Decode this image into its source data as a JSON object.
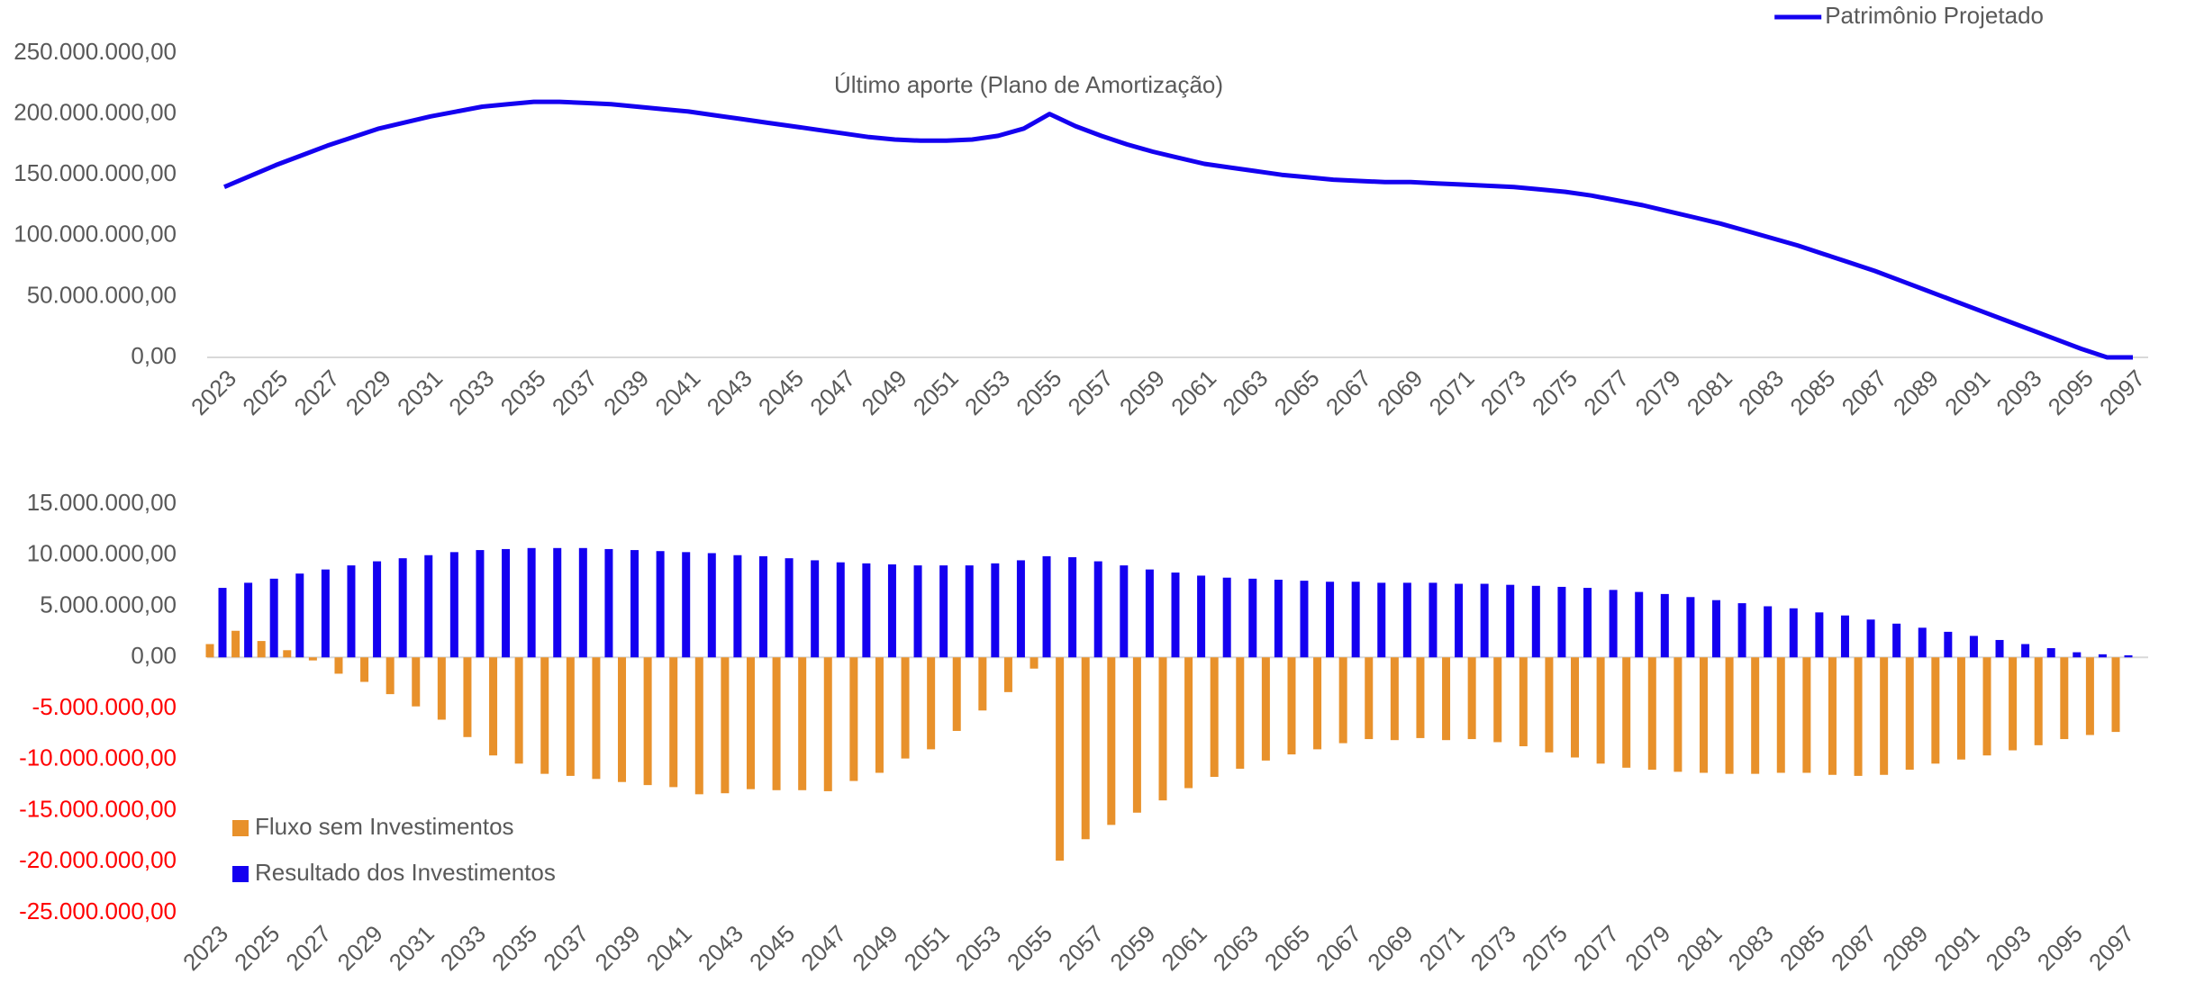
{
  "chart_data": [
    {
      "type": "line",
      "annotation": "Último aporte (Plano de Amortização)",
      "legend": "upper right",
      "categories": [
        "2023",
        null,
        "2025",
        null,
        "2027",
        null,
        "2029",
        null,
        "2031",
        null,
        "2033",
        null,
        "2035",
        null,
        "2037",
        null,
        "2039",
        null,
        "2041",
        null,
        "2043",
        null,
        "2045",
        null,
        "2047",
        null,
        "2049",
        null,
        "2051",
        null,
        "2053",
        null,
        "2055",
        null,
        "2057",
        null,
        "2059",
        null,
        "2061",
        null,
        "2063",
        null,
        "2065",
        null,
        "2067",
        null,
        "2069",
        null,
        "2071",
        null,
        "2073",
        null,
        "2075",
        null,
        "2077",
        null,
        "2079",
        null,
        "2081",
        null,
        "2083",
        null,
        "2085",
        null,
        "2087",
        null,
        "2089",
        null,
        "2091",
        null,
        "2093",
        null,
        "2095",
        null,
        "2097"
      ],
      "ylim": [
        0,
        250000000
      ],
      "yticks": [
        {
          "value": 0,
          "label": "0,00"
        },
        {
          "value": 50000000,
          "label": "50.000.000,00"
        },
        {
          "value": 100000000,
          "label": "100.000.000,00"
        },
        {
          "value": 150000000,
          "label": "150.000.000,00"
        },
        {
          "value": 200000000,
          "label": "200.000.000,00"
        },
        {
          "value": 250000000,
          "label": "250.000.000,00"
        }
      ],
      "series": [
        {
          "name": "Patrimônio Projetado",
          "color": "#1400f0",
          "values": [
            140000000,
            149000000,
            158000000,
            166000000,
            174000000,
            181000000,
            188000000,
            193000000,
            198000000,
            202000000,
            206000000,
            208000000,
            210000000,
            210000000,
            209000000,
            208000000,
            206000000,
            204000000,
            202000000,
            199000000,
            196000000,
            193000000,
            190000000,
            187000000,
            184000000,
            181000000,
            179000000,
            178000000,
            178000000,
            179000000,
            182000000,
            188000000,
            200000000,
            190000000,
            182000000,
            175000000,
            169000000,
            164000000,
            159000000,
            156000000,
            153000000,
            150000000,
            148000000,
            146000000,
            145000000,
            144000000,
            144000000,
            143000000,
            142000000,
            141000000,
            140000000,
            138000000,
            136000000,
            133000000,
            129000000,
            125000000,
            120000000,
            115000000,
            110000000,
            104000000,
            98000000,
            92000000,
            85000000,
            78000000,
            71000000,
            63000000,
            55000000,
            47000000,
            39000000,
            31000000,
            23000000,
            15000000,
            7000000,
            0,
            0
          ]
        }
      ]
    },
    {
      "type": "bar",
      "legend": "lower left",
      "negative_tick_color": "#ff0000",
      "categories": [
        "2023",
        null,
        "2025",
        null,
        "2027",
        null,
        "2029",
        null,
        "2031",
        null,
        "2033",
        null,
        "2035",
        null,
        "2037",
        null,
        "2039",
        null,
        "2041",
        null,
        "2043",
        null,
        "2045",
        null,
        "2047",
        null,
        "2049",
        null,
        "2051",
        null,
        "2053",
        null,
        "2055",
        null,
        "2057",
        null,
        "2059",
        null,
        "2061",
        null,
        "2063",
        null,
        "2065",
        null,
        "2067",
        null,
        "2069",
        null,
        "2071",
        null,
        "2073",
        null,
        "2075",
        null,
        "2077",
        null,
        "2079",
        null,
        "2081",
        null,
        "2083",
        null,
        "2085",
        null,
        "2087",
        null,
        "2089",
        null,
        "2091",
        null,
        "2093",
        null,
        "2095",
        null,
        "2097"
      ],
      "ylim": [
        -25000000,
        15000000
      ],
      "yticks": [
        {
          "value": -25000000,
          "label": "-25.000.000,00"
        },
        {
          "value": -20000000,
          "label": "-20.000.000,00"
        },
        {
          "value": -15000000,
          "label": "-15.000.000,00"
        },
        {
          "value": -10000000,
          "label": "-10.000.000,00"
        },
        {
          "value": -5000000,
          "label": "-5.000.000,00"
        },
        {
          "value": 0,
          "label": "0,00"
        },
        {
          "value": 5000000,
          "label": "5.000.000,00"
        },
        {
          "value": 10000000,
          "label": "10.000.000,00"
        },
        {
          "value": 15000000,
          "label": "15.000.000,00"
        }
      ],
      "series": [
        {
          "name": "Fluxo sem Investimentos",
          "color": "#e8912b",
          "values": [
            1300000,
            2600000,
            1600000,
            700000,
            -300000,
            -1600000,
            -2400000,
            -3600000,
            -4800000,
            -6100000,
            -7800000,
            -9600000,
            -10400000,
            -11400000,
            -11600000,
            -11900000,
            -12200000,
            -12500000,
            -12700000,
            -13400000,
            -13300000,
            -12900000,
            -13000000,
            -13000000,
            -13100000,
            -12100000,
            -11300000,
            -9900000,
            -9000000,
            -7200000,
            -5200000,
            -3400000,
            -1100000,
            -19900000,
            -17800000,
            -16400000,
            -15200000,
            -14000000,
            -12800000,
            -11700000,
            -10900000,
            -10100000,
            -9500000,
            -9000000,
            -8400000,
            -8000000,
            -8100000,
            -7900000,
            -8100000,
            -8000000,
            -8300000,
            -8700000,
            -9300000,
            -9800000,
            -10400000,
            -10800000,
            -11000000,
            -11200000,
            -11300000,
            -11400000,
            -11400000,
            -11300000,
            -11300000,
            -11500000,
            -11600000,
            -11500000,
            -11000000,
            -10400000,
            -10000000,
            -9600000,
            -9100000,
            -8600000,
            -8000000,
            -7600000,
            -7300000
          ]
        },
        {
          "name": "Resultado dos Investimentos",
          "color": "#1400f0",
          "values": [
            6800000,
            7300000,
            7700000,
            8200000,
            8600000,
            9000000,
            9400000,
            9700000,
            10000000,
            10300000,
            10500000,
            10600000,
            10700000,
            10700000,
            10700000,
            10600000,
            10500000,
            10400000,
            10300000,
            10200000,
            10000000,
            9900000,
            9700000,
            9500000,
            9300000,
            9200000,
            9100000,
            9000000,
            9000000,
            9000000,
            9200000,
            9500000,
            9900000,
            9800000,
            9400000,
            9000000,
            8600000,
            8300000,
            8000000,
            7800000,
            7700000,
            7600000,
            7500000,
            7400000,
            7400000,
            7300000,
            7300000,
            7300000,
            7200000,
            7200000,
            7100000,
            7000000,
            6900000,
            6800000,
            6600000,
            6400000,
            6200000,
            5900000,
            5600000,
            5300000,
            5000000,
            4800000,
            4400000,
            4100000,
            3700000,
            3300000,
            2900000,
            2500000,
            2100000,
            1700000,
            1300000,
            900000,
            500000,
            300000,
            200000
          ]
        }
      ]
    }
  ]
}
